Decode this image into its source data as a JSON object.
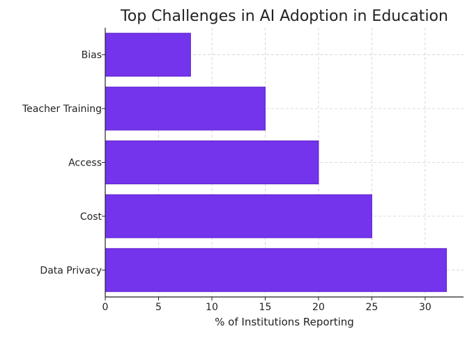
{
  "chart_data": {
    "type": "bar",
    "orientation": "horizontal",
    "title": "Top Challenges in AI Adoption in Education",
    "xlabel": "% of Institutions Reporting",
    "ylabel": "",
    "categories": [
      "Data Privacy",
      "Cost",
      "Access",
      "Teacher Training",
      "Bias"
    ],
    "values": [
      32,
      25,
      20,
      15,
      8
    ],
    "xlim": [
      0,
      33.6
    ],
    "x_ticks": [
      0,
      5,
      10,
      15,
      20,
      25,
      30
    ],
    "grid": true,
    "bar_color": "#7434EC",
    "bar_edge_color": "#5E22CF"
  }
}
